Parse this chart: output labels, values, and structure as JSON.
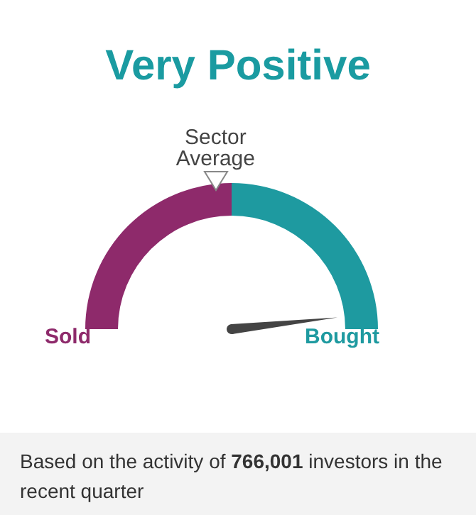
{
  "chart_data": {
    "type": "donut",
    "title": "Very Positive",
    "categories": [
      "Sold",
      "Bought"
    ],
    "values": [
      50,
      50
    ],
    "colors": [
      "#8e2a6b",
      "#1e9aa0"
    ],
    "needle": "Bought",
    "annotations": [
      "Sector Average",
      "Based on the activity of 766,001 investors in the recent quarter"
    ]
  }
}
